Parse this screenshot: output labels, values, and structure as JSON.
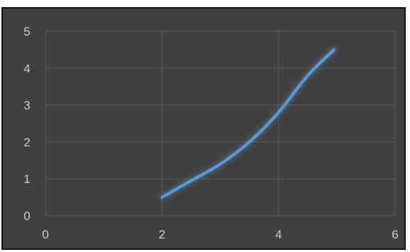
{
  "chart_data": {
    "type": "line",
    "x": [
      2.0,
      2.5,
      3.0,
      3.5,
      4.0,
      4.5,
      4.95
    ],
    "series": [
      {
        "values": [
          0.5,
          0.95,
          1.4,
          2.0,
          2.8,
          3.8,
          4.5
        ],
        "color": "#5b9bd5"
      }
    ],
    "xlim": [
      0,
      6
    ],
    "ylim": [
      0,
      5
    ],
    "x_ticks": [
      "0",
      "2",
      "4",
      "6"
    ],
    "y_ticks": [
      "0",
      "1",
      "2",
      "3",
      "4",
      "5"
    ],
    "title": "",
    "xlabel": "",
    "ylabel": "",
    "grid": true,
    "smooth": true,
    "background_color": "#404040",
    "grid_color": "#595959",
    "tick_label_color": "#cfcfcf"
  }
}
